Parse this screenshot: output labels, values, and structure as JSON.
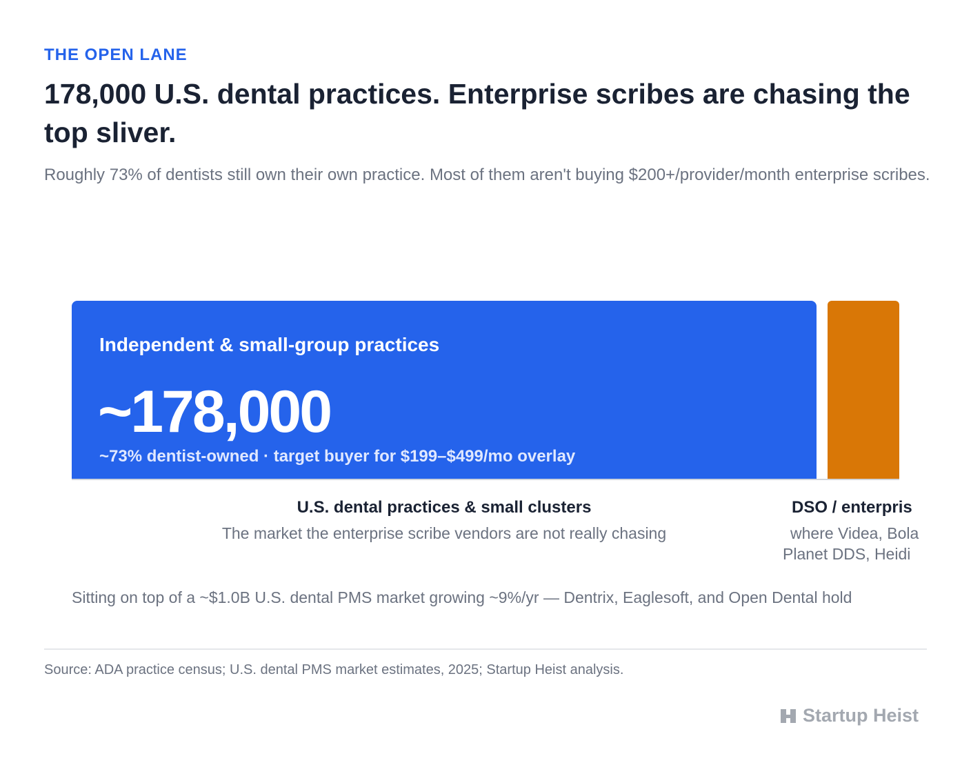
{
  "header": {
    "eyebrow": "THE OPEN LANE",
    "title": "178,000 U.S. dental practices. Enterprise scribes are chasing the top sliver.",
    "subtitle": "Roughly 73% of dentists still own their own practice. Most of them aren't buying $200+/provider/month enterprise scribes."
  },
  "blocks": [
    {
      "label": "Independent & small-group practices",
      "value": "~178,000",
      "note": "~73% dentist-owned · target buyer for $199–$499/mo overlay"
    }
  ],
  "groups": [
    {
      "title": "U.S. dental practices & small clusters",
      "description": "The market the enterprise scribe vendors are not really chasing"
    },
    {
      "title": "DSO / enterpris",
      "description_lines": [
        "where Videa, Bola",
        "Planet DDS, Heidi"
      ]
    }
  ],
  "footnote": "Sitting on top of a ~$1.0B U.S. dental PMS market growing ~9%/yr — Dentrix, Eaglesoft, and Open Dental hold",
  "source": "Source: ADA practice census; U.S. dental PMS market estimates, 2025; Startup Heist analysis.",
  "brand": "Startup Heist"
}
